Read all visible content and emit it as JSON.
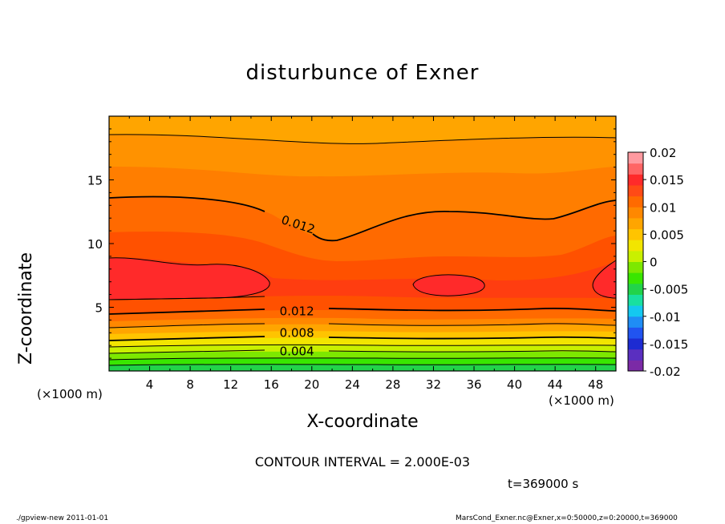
{
  "chart_data": {
    "type": "contour",
    "title": "disturbunce of Exner",
    "xlabel": "X-coordinate",
    "ylabel": "Z-coordinate",
    "x_unit_label": "(×1000 m)",
    "z_unit_label": "(×1000 m)",
    "xlim": [
      0,
      50
    ],
    "ylim": [
      0,
      20
    ],
    "xticks": [
      4,
      8,
      12,
      16,
      20,
      24,
      28,
      32,
      36,
      40,
      44,
      48
    ],
    "yticks": [
      5,
      10,
      15
    ],
    "contour_interval_text": "CONTOUR INTERVAL = 2.000E-03",
    "contour_labels": [
      {
        "text": "0.012",
        "x": 19,
        "z": 11.5
      },
      {
        "text": "0.012",
        "x": 19,
        "z": 4.7
      },
      {
        "text": "0.008",
        "x": 19,
        "z": 3.0
      },
      {
        "text": "0.004",
        "x": 19,
        "z": 1.55
      }
    ],
    "colorbar": {
      "ticks": [
        "0.02",
        "0.015",
        "0.01",
        "0.005",
        "0",
        "-0.005",
        "-0.01",
        "-0.015",
        "-0.02"
      ],
      "levels": [
        -0.02,
        0.02
      ],
      "colors": [
        "#7b2aa6",
        "#5a2fc0",
        "#1d2bd2",
        "#2154f0",
        "#1f8df5",
        "#14c8f0",
        "#19e0a0",
        "#22d34a",
        "#39e600",
        "#7de800",
        "#c9f000",
        "#f2e500",
        "#ffc400",
        "#ffa500",
        "#ff8800",
        "#ff6a00",
        "#ff4a16",
        "#ff2a2a",
        "#ff6565",
        "#ff9aa0"
      ]
    },
    "time_text": "t=369000 s"
  },
  "footer": {
    "left": "./gpview-new   2011-01-01",
    "right": "MarsCond_Exner.nc@Exner,x=0:50000,z=0:20000,t=369000"
  }
}
